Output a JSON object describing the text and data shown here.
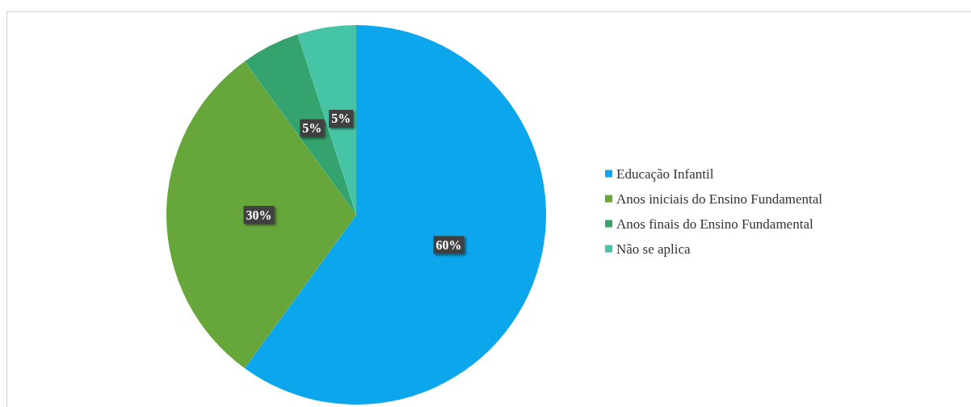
{
  "chart_data": {
    "type": "pie",
    "categories": [
      "Educação Infantil",
      "Anos iniciais do Ensino Fundamental",
      "Anos finais do Ensino Fundamental",
      "Não se aplica"
    ],
    "values": [
      60,
      30,
      5,
      5
    ],
    "colors": [
      "#0ba6ec",
      "#66a63a",
      "#35a36e",
      "#46c5a6"
    ],
    "value_labels": [
      "60%",
      "30%",
      "5%",
      "5%"
    ],
    "legend": "right"
  }
}
